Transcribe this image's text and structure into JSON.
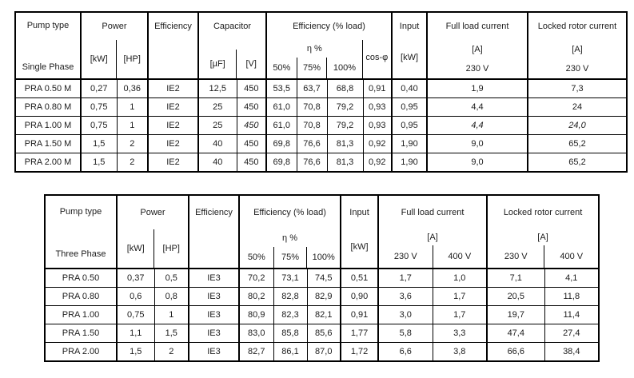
{
  "colors": {
    "border": "#000000",
    "text": "#1c1c1c",
    "background": "#ffffff"
  },
  "tables": [
    {
      "id": "single-phase",
      "header": {
        "pump_type": "Pump type",
        "phase": "Single Phase",
        "power": "Power",
        "kw_unit": "[kW]",
        "hp_unit": "[HP]",
        "efficiency": "Efficiency",
        "capacitor": "Capacitor",
        "uf_unit": "[µF]",
        "v_unit": "[V]",
        "eff_load": "Efficiency (% load)",
        "eta": "η %",
        "pct50": "50%",
        "pct75": "75%",
        "pct100": "100%",
        "cos_phi": "cos-φ",
        "input": "Input",
        "input_unit": "[kW]",
        "full_load": "Full load current",
        "amp_unit": "[A]",
        "flc_voltage": "230 V",
        "locked_rotor": "Locked rotor current",
        "lrc_voltage": "230 V"
      },
      "rows": [
        {
          "pump": "PRA 0.50 M",
          "kw": "0,27",
          "hp": "0,36",
          "eff": "IE2",
          "uf": "12,5",
          "v": "450",
          "e50": "53,5",
          "e75": "63,7",
          "e100": "68,8",
          "cos": "0,91",
          "input": "0,40",
          "flc": "1,9",
          "lrc": "7,3"
        },
        {
          "pump": "PRA 0.80 M",
          "kw": "0,75",
          "hp": "1",
          "eff": "IE2",
          "uf": "25",
          "v": "450",
          "e50": "61,0",
          "e75": "70,8",
          "e100": "79,2",
          "cos": "0,93",
          "input": "0,95",
          "flc": "4,4",
          "lrc": "24"
        },
        {
          "pump": "PRA 1.00 M",
          "kw": "0,75",
          "hp": "1",
          "eff": "IE2",
          "uf": "25",
          "v": "450",
          "e50": "61,0",
          "e75": "70,8",
          "e100": "79,2",
          "cos": "0,93",
          "input": "0,95",
          "flc": "4,4",
          "lrc": "24,0"
        },
        {
          "pump": "PRA 1.50 M",
          "kw": "1,5",
          "hp": "2",
          "eff": "IE2",
          "uf": "40",
          "v": "450",
          "e50": "69,8",
          "e75": "76,6",
          "e100": "81,3",
          "cos": "0,92",
          "input": "1,90",
          "flc": "9,0",
          "lrc": "65,2"
        },
        {
          "pump": "PRA 2.00 M",
          "kw": "1,5",
          "hp": "2",
          "eff": "IE2",
          "uf": "40",
          "v": "450",
          "e50": "69,8",
          "e75": "76,6",
          "e100": "81,3",
          "cos": "0,92",
          "input": "1,90",
          "flc": "9,0",
          "lrc": "65,2"
        }
      ],
      "italic_cells": [
        {
          "row": 2,
          "cols": [
            "v",
            "flc",
            "lrc"
          ]
        }
      ]
    },
    {
      "id": "three-phase",
      "header": {
        "pump_type": "Pump type",
        "phase": "Three Phase",
        "power": "Power",
        "kw_unit": "[kW]",
        "hp_unit": "[HP]",
        "efficiency": "Efficiency",
        "eff_load": "Efficiency (% load)",
        "eta": "η %",
        "pct50": "50%",
        "pct75": "75%",
        "pct100": "100%",
        "input": "Input",
        "input_unit": "[kW]",
        "full_load": "Full load current",
        "amp_unit": "[A]",
        "flc_v230": "230 V",
        "flc_v400": "400 V",
        "locked_rotor": "Locked rotor current",
        "lrc_v230": "230 V",
        "lrc_v400": "400 V"
      },
      "rows": [
        {
          "pump": "PRA 0.50",
          "kw": "0,37",
          "hp": "0,5",
          "eff": "IE3",
          "e50": "70,2",
          "e75": "73,1",
          "e100": "74,5",
          "input": "0,51",
          "flc230": "1,7",
          "flc400": "1,0",
          "lrc230": "7,1",
          "lrc400": "4,1"
        },
        {
          "pump": "PRA 0.80",
          "kw": "0,6",
          "hp": "0,8",
          "eff": "IE3",
          "e50": "80,2",
          "e75": "82,8",
          "e100": "82,9",
          "input": "0,90",
          "flc230": "3,6",
          "flc400": "1,7",
          "lrc230": "20,5",
          "lrc400": "11,8"
        },
        {
          "pump": "PRA 1.00",
          "kw": "0,75",
          "hp": "1",
          "eff": "IE3",
          "e50": "80,9",
          "e75": "82,3",
          "e100": "82,1",
          "input": "0,91",
          "flc230": "3,0",
          "flc400": "1,7",
          "lrc230": "19,7",
          "lrc400": "11,4"
        },
        {
          "pump": "PRA 1.50",
          "kw": "1,1",
          "hp": "1,5",
          "eff": "IE3",
          "e50": "83,0",
          "e75": "85,8",
          "e100": "85,6",
          "input": "1,77",
          "flc230": "5,8",
          "flc400": "3,3",
          "lrc230": "47,4",
          "lrc400": "27,4"
        },
        {
          "pump": "PRA 2.00",
          "kw": "1,5",
          "hp": "2",
          "eff": "IE3",
          "e50": "82,7",
          "e75": "86,1",
          "e100": "87,0",
          "input": "1,72",
          "flc230": "6,6",
          "flc400": "3,8",
          "lrc230": "66,6",
          "lrc400": "38,4"
        }
      ],
      "italic_cells": []
    }
  ]
}
